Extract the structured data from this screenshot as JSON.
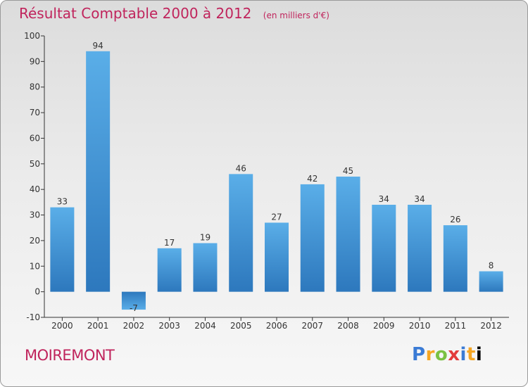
{
  "header": {
    "title": "Résultat Comptable 2000 à 2012",
    "subtitle": "(en milliers d'€)"
  },
  "footer": {
    "place": "MOIREMONT",
    "logo_text": "Proxiti"
  },
  "colors": {
    "title": "#c0245c",
    "bar_top": "#5aaee8",
    "bar_bottom": "#2d78bd",
    "axis": "#333333"
  },
  "chart_data": {
    "type": "bar",
    "title": "Résultat Comptable 2000 à 2012",
    "subtitle": "(en milliers d'€)",
    "categories": [
      "2000",
      "2001",
      "2002",
      "2003",
      "2004",
      "2005",
      "2006",
      "2007",
      "2008",
      "2009",
      "2010",
      "2011",
      "2012"
    ],
    "values": [
      33,
      94,
      -7,
      17,
      19,
      46,
      27,
      42,
      45,
      34,
      34,
      26,
      8
    ],
    "ylim": [
      -10,
      100
    ],
    "yticks": [
      -10,
      0,
      10,
      20,
      30,
      40,
      50,
      60,
      70,
      80,
      90,
      100
    ],
    "xlabel": "",
    "ylabel": "",
    "grid": false,
    "legend": "none"
  }
}
